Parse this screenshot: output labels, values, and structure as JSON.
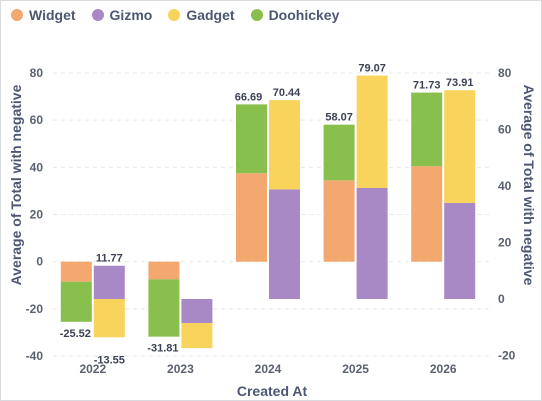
{
  "chart_data": {
    "type": "bar",
    "stacked": true,
    "categories": [
      "2022",
      "2023",
      "2024",
      "2025",
      "2026"
    ],
    "xlabel": "Created At",
    "ylabel_left": "Average of Total with negative",
    "ylabel_right": "Average of Total with negative",
    "yticks_left": [
      "80",
      "60",
      "40",
      "20",
      "0",
      "-20",
      "-40"
    ],
    "yticks_right": [
      "80",
      "60",
      "40",
      "20",
      "0",
      "-20"
    ],
    "ylim_left": [
      -40,
      80
    ],
    "ylim_right": [
      -20,
      80
    ],
    "grid": true,
    "legend_position": "top-left",
    "series": [
      {
        "name": "Widget",
        "color": "#f2a86f",
        "axis": "left",
        "stack": "left",
        "values": [
          -8.5,
          -7.5,
          37.5,
          34.5,
          40.5
        ]
      },
      {
        "name": "Doohickey",
        "color": "#88bf4d",
        "axis": "left",
        "stack": "left",
        "values": [
          -17.0,
          -24.3,
          29.2,
          23.6,
          31.2
        ]
      },
      {
        "name": "Gizmo",
        "color": "#a989c5",
        "axis": "right",
        "stack": "right",
        "values": [
          11.77,
          -8.5,
          38.8,
          39.3,
          34.0
        ]
      },
      {
        "name": "Gadget",
        "color": "#f9d45c",
        "axis": "right",
        "stack": "right",
        "values": [
          -13.55,
          -8.9,
          31.6,
          39.8,
          39.9
        ]
      }
    ],
    "totals": [
      {
        "category": "2022",
        "stack": "left",
        "label": "-25.52"
      },
      {
        "category": "2022",
        "stack": "right",
        "label": "11.77"
      },
      {
        "category": "2022",
        "stack": "right",
        "label": "-13.55"
      },
      {
        "category": "2023",
        "stack": "left",
        "label": "-31.81"
      },
      {
        "category": "2024",
        "stack": "left",
        "label": "66.69"
      },
      {
        "category": "2024",
        "stack": "right",
        "label": "70.44"
      },
      {
        "category": "2025",
        "stack": "left",
        "label": "58.07"
      },
      {
        "category": "2025",
        "stack": "right",
        "label": "79.07"
      },
      {
        "category": "2026",
        "stack": "left",
        "label": "71.73"
      },
      {
        "category": "2026",
        "stack": "right",
        "label": "73.91"
      }
    ]
  },
  "legend": [
    {
      "label": "Widget",
      "color": "#f2a86f"
    },
    {
      "label": "Gizmo",
      "color": "#a989c5"
    },
    {
      "label": "Gadget",
      "color": "#f9d45c"
    },
    {
      "label": "Doohickey",
      "color": "#88bf4d"
    }
  ]
}
